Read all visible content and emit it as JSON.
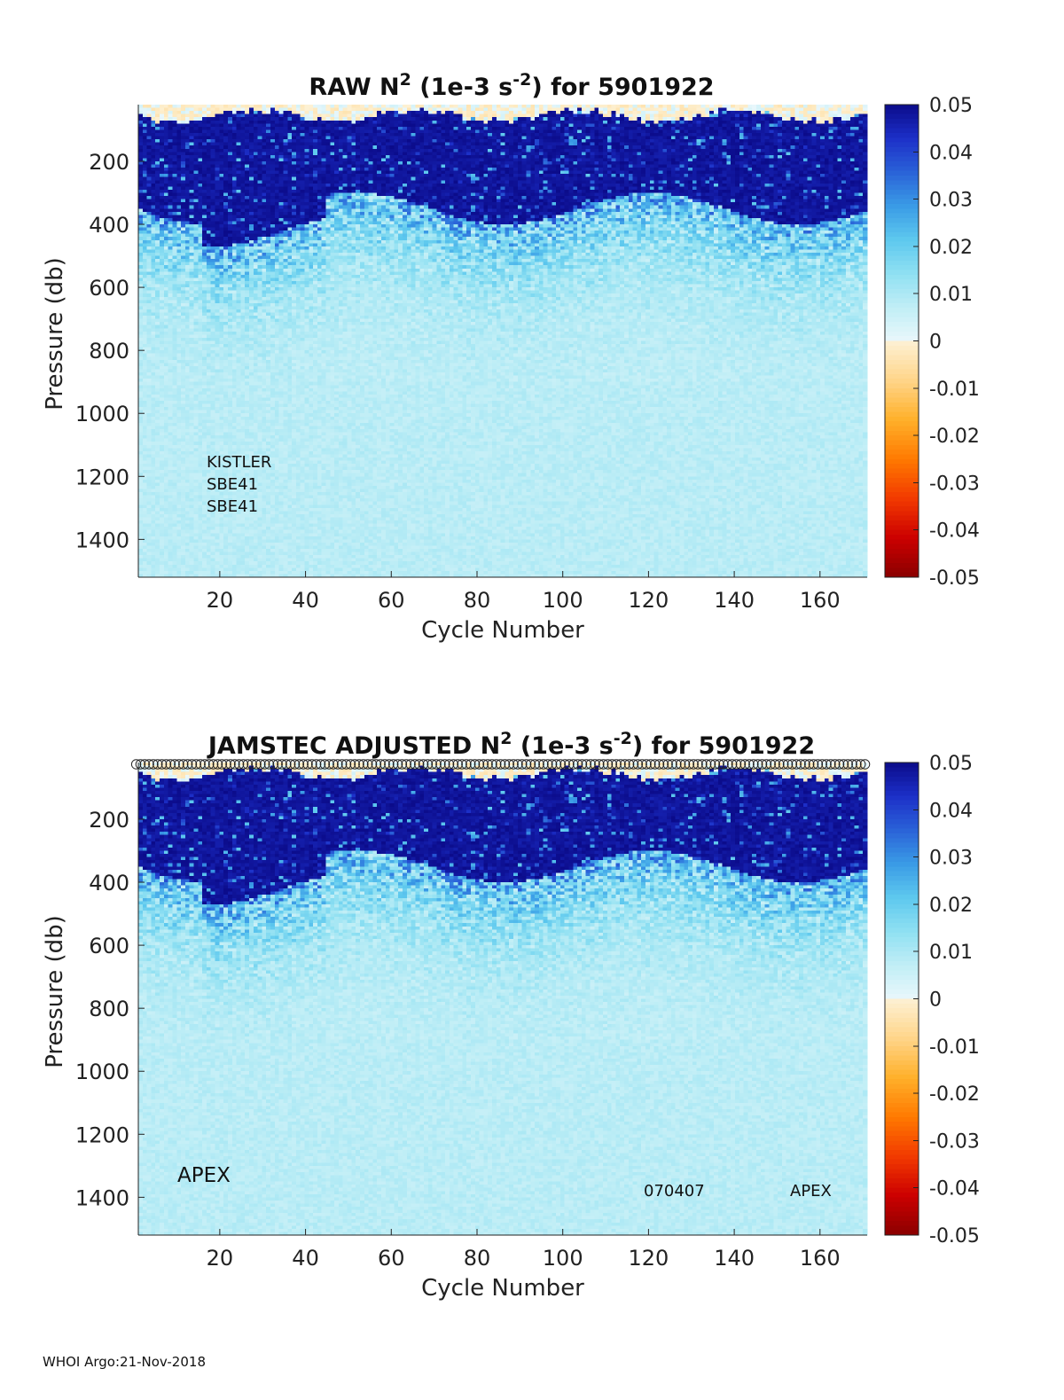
{
  "footer": "WHOI Argo:21-Nov-2018",
  "colors": {
    "ramp_positive": [
      "#e9f7fb",
      "#c0eef6",
      "#8fe0f2",
      "#5dc8ee",
      "#3a9be6",
      "#2a62d8",
      "#1c2fc8",
      "#0b0b8a"
    ],
    "ramp_negative": [
      "#fdf1d4",
      "#ffd58a",
      "#ffb02a",
      "#ff7a00",
      "#f23a00",
      "#cc0000",
      "#8a0000"
    ]
  },
  "chart_data": [
    {
      "type": "heatmap",
      "title_parts": [
        "RAW N",
        "2",
        " (1e-3 s",
        "-2",
        ") for 5901922"
      ],
      "xlabel": "Cycle Number",
      "ylabel": "Pressure (db)",
      "xlim": [
        1,
        171
      ],
      "ylim": [
        20,
        1520
      ],
      "y_reversed": true,
      "xticks": [
        20,
        40,
        60,
        80,
        100,
        120,
        140,
        160
      ],
      "yticks": [
        200,
        400,
        600,
        800,
        1000,
        1200,
        1400
      ],
      "colorbar": {
        "min": -0.05,
        "max": 0.05,
        "ticks": [
          "0.05",
          "0.04",
          "0.03",
          "0.02",
          "0.01",
          "0",
          "-0.01",
          "-0.02",
          "-0.03",
          "-0.04",
          "-0.05"
        ]
      },
      "field": {
        "strong_layer_bottom_db": [
          300,
          400
        ],
        "background": 0.007,
        "surface_mixed_layer_db": 45
      },
      "annotations": [
        "KISTLER",
        "SBE41",
        "SBE41"
      ],
      "markers": []
    },
    {
      "type": "heatmap",
      "title_parts": [
        "JAMSTEC  ADJUSTED N",
        "2",
        " (1e-3 s",
        "-2",
        ") for 5901922"
      ],
      "xlabel": "Cycle Number",
      "ylabel": "Pressure (db)",
      "xlim": [
        1,
        171
      ],
      "ylim": [
        20,
        1520
      ],
      "y_reversed": true,
      "xticks": [
        20,
        40,
        60,
        80,
        100,
        120,
        140,
        160
      ],
      "yticks": [
        200,
        400,
        600,
        800,
        1000,
        1200,
        1400
      ],
      "colorbar": {
        "min": -0.05,
        "max": 0.05,
        "ticks": [
          "0.05",
          "0.04",
          "0.03",
          "0.02",
          "0.01",
          "0",
          "-0.01",
          "-0.02",
          "-0.03",
          "-0.04",
          "-0.05"
        ]
      },
      "field": {
        "strong_layer_bottom_db": [
          300,
          400
        ],
        "background": 0.007,
        "surface_mixed_layer_db": 45
      },
      "annotations": [
        "APEX",
        "070407",
        "APEX"
      ],
      "markers": [
        "o"
      ]
    }
  ]
}
